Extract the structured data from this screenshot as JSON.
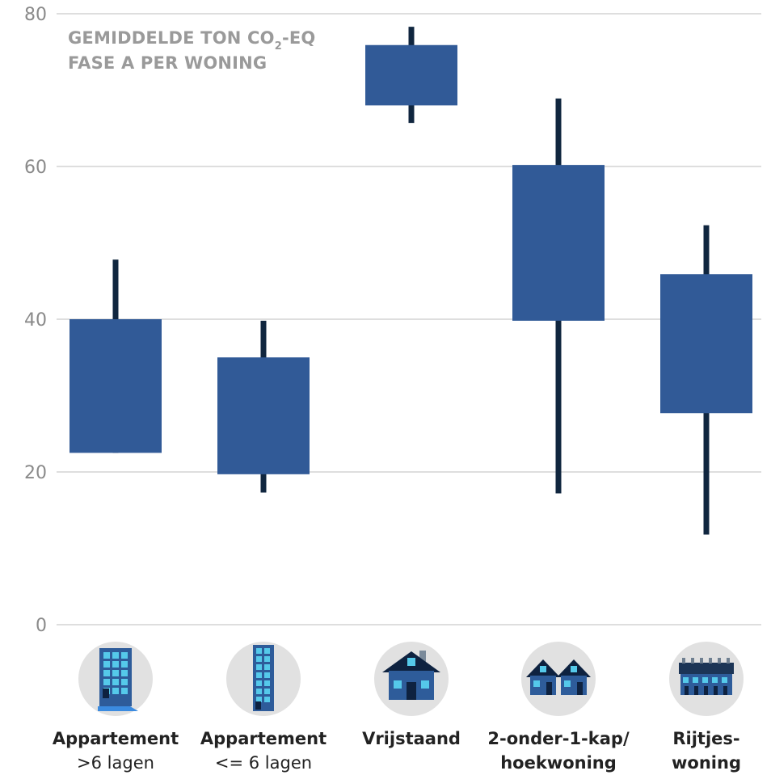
{
  "chart_data": {
    "type": "candlestick",
    "title_lines": [
      "GEMIDDELDE TON CO",
      "2",
      "-EQ",
      "FASE A PER WONING"
    ],
    "ylim": [
      0,
      80
    ],
    "yticks": [
      "0",
      "20",
      "40",
      "60",
      "80"
    ],
    "grid": true,
    "categories": [
      {
        "line1": "Appartement",
        "line2": ">6 lagen",
        "line2_bold": false,
        "icon": "high-rise-apartment-icon"
      },
      {
        "line1": "Appartement",
        "line2": "<= 6 lagen",
        "line2_bold": false,
        "icon": "low-rise-apartment-icon"
      },
      {
        "line1": "Vrijstaand",
        "line2": "",
        "line2_bold": false,
        "icon": "detached-house-icon"
      },
      {
        "line1": "2-onder-1-kap/",
        "line2": "hoekwoning",
        "line2_bold": true,
        "icon": "semi-detached-house-icon"
      },
      {
        "line1": "Rijtjes-",
        "line2": "woning",
        "line2_bold": true,
        "icon": "terraced-house-icon"
      }
    ],
    "series": [
      {
        "box_low": 22.5,
        "box_high": 40.0,
        "whisker_low": 22.5,
        "whisker_high": 47.8
      },
      {
        "box_low": 19.7,
        "box_high": 35.0,
        "whisker_low": 17.3,
        "whisker_high": 39.8
      },
      {
        "box_low": 68.0,
        "box_high": 75.9,
        "whisker_low": 65.7,
        "whisker_high": 78.3
      },
      {
        "box_low": 39.8,
        "box_high": 60.2,
        "whisker_low": 17.2,
        "whisker_high": 68.9
      },
      {
        "box_low": 27.7,
        "box_high": 45.9,
        "whisker_low": 11.8,
        "whisker_high": 52.3
      }
    ],
    "colors": {
      "box": "#315a97",
      "whisker": "#10263f",
      "grid": "#dedede",
      "icon_circle": "#e1e1e1"
    }
  }
}
